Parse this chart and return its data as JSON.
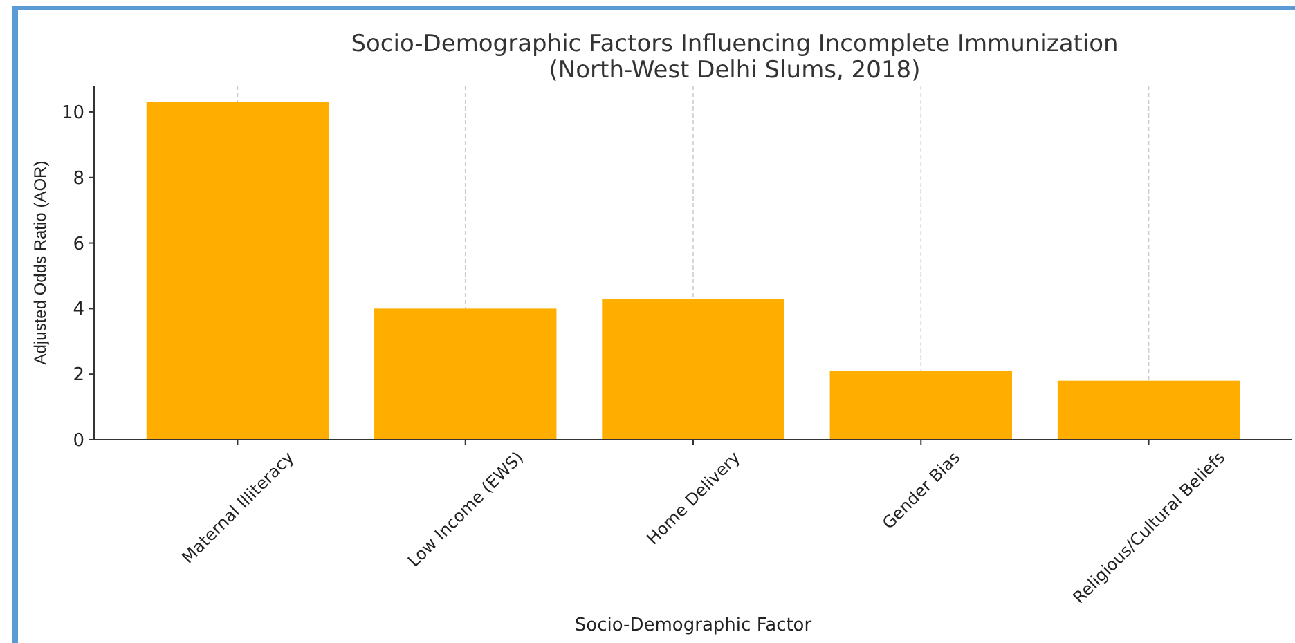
{
  "chart_data": {
    "type": "bar",
    "title": "Socio-Demographic Factors Influencing Incomplete Immunization\n(North-West Delhi Slums, 2018)",
    "xlabel": "Socio-Demographic Factor",
    "ylabel": "Adjusted Odds Ratio (AOR)",
    "categories": [
      "Maternal Illiteracy",
      "Low Income (EWS)",
      "Home Delivery",
      "Gender Bias",
      "Religious/Cultural Beliefs"
    ],
    "values": [
      10.3,
      4.0,
      4.3,
      2.1,
      1.8
    ],
    "color": "#ffae00",
    "ylim": [
      0,
      10.8
    ],
    "yticks": [
      0,
      2,
      4,
      6,
      8,
      10
    ],
    "grid": "x"
  }
}
